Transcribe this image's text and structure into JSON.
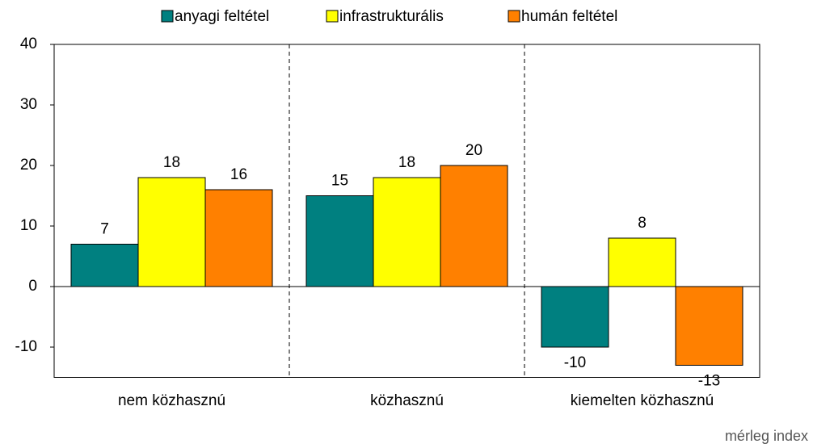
{
  "chart_data": {
    "type": "bar",
    "categories": [
      "nem közhasznú",
      "közhasznú",
      "kiemelten közhasznú"
    ],
    "series": [
      {
        "name": "anyagi feltétel",
        "color": "#008080",
        "values": [
          7,
          15,
          -10
        ]
      },
      {
        "name": "infrastrukturális",
        "color": "#ffff00",
        "values": [
          18,
          18,
          8
        ]
      },
      {
        "name": "humán feltétel",
        "color": "#ff8000",
        "values": [
          16,
          20,
          -13
        ]
      }
    ],
    "ylim": [
      -15,
      40
    ],
    "yticks": [
      -10,
      0,
      10,
      20,
      30,
      40
    ],
    "legend": "top",
    "note": "mérleg index"
  }
}
